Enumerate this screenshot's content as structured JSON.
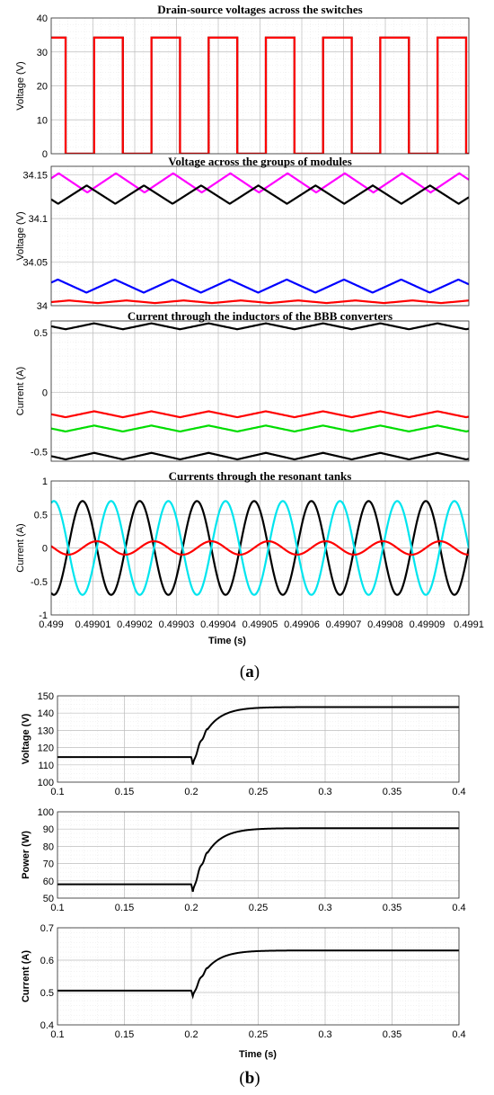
{
  "figure_a": {
    "caption_letter": "a",
    "xlabel": "Time (s)",
    "xticks": [
      "0.499",
      "0.49901",
      "0.49902",
      "0.49903",
      "0.49904",
      "0.49905",
      "0.49906",
      "0.49907",
      "0.49908",
      "0.49909",
      "0.4991"
    ]
  },
  "figure_b": {
    "caption_letter": "b",
    "xlabel": "Time (s)"
  },
  "chart_data": [
    {
      "id": "a1",
      "type": "line",
      "title": "Drain-source voltages across the switches",
      "ylabel": "Voltage (V)",
      "xlim": [
        0.499,
        0.4991
      ],
      "ylim": [
        0,
        40
      ],
      "yticks": [
        "0",
        "10",
        "20",
        "30",
        "40"
      ],
      "xticks": [],
      "grid": true,
      "series": [
        {
          "color": "#000000",
          "kind": "square",
          "low": 0,
          "high": 34.2,
          "period": 1.37e-05,
          "first_rise": 0.4990103,
          "duty": 0.5
        },
        {
          "color": "#ff0000",
          "kind": "square",
          "low": 0,
          "high": 34.2,
          "period": 1.37e-05,
          "first_rise": 0.4989966,
          "duty": 0.5
        }
      ]
    },
    {
      "id": "a2",
      "type": "line",
      "title": "Voltage across the groups of modules",
      "ylabel": "Voltage (V)",
      "xlim": [
        0.499,
        0.4991
      ],
      "ylim": [
        34,
        34.16
      ],
      "yticks": [
        "34",
        "34.05",
        "34.1",
        "34.15"
      ],
      "xticks": [],
      "grid": true,
      "series": [
        {
          "color": "#ff00ff",
          "kind": "triangle",
          "min": 34.13,
          "max": 34.152,
          "period": 1.37e-05,
          "peak": 0.4990155
        },
        {
          "color": "#000000",
          "kind": "triangle",
          "min": 34.117,
          "max": 34.138,
          "period": 1.37e-05,
          "peak": 0.4990085
        },
        {
          "color": "#0000ff",
          "kind": "triangle",
          "min": 34.015,
          "max": 34.03,
          "period": 1.37e-05,
          "peak": 0.499029
        },
        {
          "color": "#ff0000",
          "kind": "triangle",
          "min": 34.003,
          "max": 34.006,
          "period": 1.37e-05,
          "peak": 0.499018
        }
      ]
    },
    {
      "id": "a3",
      "type": "line",
      "title": "Current through the inductors of the BBB converters",
      "ylabel": "Current (A)",
      "xlim": [
        0.499,
        0.4991
      ],
      "ylim": [
        -0.58,
        0.6
      ],
      "yticks": [
        "-0.5",
        "0",
        "0.5"
      ],
      "xticks": [],
      "grid": true,
      "series": [
        {
          "color": "#000000",
          "kind": "triangle",
          "min": 0.53,
          "max": 0.58,
          "period": 1.37e-05,
          "peak": 0.4990103
        },
        {
          "color": "#ff0000",
          "kind": "triangle",
          "min": -0.21,
          "max": -0.16,
          "period": 1.37e-05,
          "peak": 0.4990103
        },
        {
          "color": "#00dd00",
          "kind": "triangle",
          "min": -0.33,
          "max": -0.28,
          "period": 1.37e-05,
          "peak": 0.4990103
        },
        {
          "color": "#000000",
          "kind": "triangle",
          "min": -0.565,
          "max": -0.51,
          "period": 1.37e-05,
          "peak": 0.4990103
        }
      ]
    },
    {
      "id": "a4",
      "type": "line",
      "title": "Currents through the resonant tanks",
      "ylabel": "Current (A)",
      "xlim": [
        0.499,
        0.4991
      ],
      "ylim": [
        -1,
        1
      ],
      "yticks": [
        "-1",
        "-0.5",
        "0",
        "0.5",
        "1"
      ],
      "xticks": [
        "0.499",
        "0.49901",
        "0.49902",
        "0.49903",
        "0.49904",
        "0.49905",
        "0.49906",
        "0.49907",
        "0.49908",
        "0.49909",
        "0.4991"
      ],
      "grid": true,
      "series": [
        {
          "color": "#000000",
          "kind": "sine",
          "amp": 0.7,
          "period": 1.37e-05,
          "peak": 0.4990075
        },
        {
          "color": "#00e5ee",
          "kind": "sine",
          "amp": 0.7,
          "period": 1.37e-05,
          "peak": 0.49901435
        },
        {
          "color": "#ff0000",
          "kind": "sine",
          "amp": 0.1,
          "period": 1.37e-05,
          "peak": 0.4990109
        }
      ]
    },
    {
      "id": "b1",
      "type": "line",
      "title": "",
      "ylabel": "Voltage (V)",
      "xlim": [
        0.1,
        0.4
      ],
      "ylim": [
        100,
        150
      ],
      "yticks": [
        "100",
        "110",
        "120",
        "130",
        "140",
        "150"
      ],
      "xticks": [
        "0.1",
        "0.15",
        "0.2",
        "0.25",
        "0.3",
        "0.35",
        "0.4"
      ],
      "grid": true,
      "series": [
        {
          "color": "#000000",
          "kind": "step",
          "initial": 114.5,
          "final": 143.5,
          "t0": 0.2,
          "dip": 110,
          "tau": 0.0115
        }
      ]
    },
    {
      "id": "b2",
      "type": "line",
      "title": "",
      "ylabel": "Power (W)",
      "xlim": [
        0.1,
        0.4
      ],
      "ylim": [
        50,
        100
      ],
      "yticks": [
        "50",
        "60",
        "70",
        "80",
        "90",
        "100"
      ],
      "xticks": [
        "0.1",
        "0.15",
        "0.2",
        "0.25",
        "0.3",
        "0.35",
        "0.4"
      ],
      "grid": true,
      "series": [
        {
          "color": "#000000",
          "kind": "step",
          "initial": 58,
          "final": 90.5,
          "t0": 0.2,
          "dip": 53.5,
          "tau": 0.0115
        }
      ]
    },
    {
      "id": "b3",
      "type": "line",
      "title": "",
      "ylabel": "Current (A)",
      "xlim": [
        0.1,
        0.4
      ],
      "ylim": [
        0.4,
        0.7
      ],
      "yticks": [
        "0.4",
        "0.5",
        "0.6",
        "0.7"
      ],
      "xticks": [
        "0.1",
        "0.15",
        "0.2",
        "0.25",
        "0.3",
        "0.35",
        "0.4"
      ],
      "grid": true,
      "series": [
        {
          "color": "#000000",
          "kind": "step",
          "initial": 0.506,
          "final": 0.63,
          "t0": 0.2,
          "dip": 0.488,
          "tau": 0.0115
        }
      ]
    }
  ]
}
